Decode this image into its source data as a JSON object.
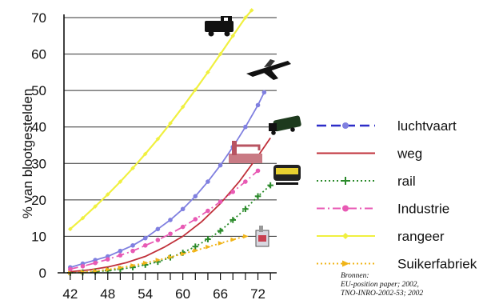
{
  "chart_data": {
    "type": "line",
    "ylabel": "% van blootgestelden",
    "x_ticks": [
      42,
      48,
      54,
      60,
      66,
      72
    ],
    "y_ticks": [
      0,
      10,
      20,
      30,
      40,
      50,
      60,
      70
    ],
    "xlim": [
      41,
      75
    ],
    "ylim": [
      0,
      70
    ],
    "grid": "horizontal",
    "legend_placement": "right",
    "series": [
      {
        "name": "luchtvaart",
        "color": "#8080e0",
        "line_color": "#2d2dc8",
        "style": "dashed",
        "marker": "circle",
        "icon": "airplane-icon",
        "x": [
          42,
          44,
          46,
          48,
          50,
          52,
          54,
          56,
          58,
          60,
          62,
          64,
          66,
          68,
          70,
          72,
          73
        ],
        "y": [
          1.5,
          2.5,
          3.5,
          4.5,
          6,
          7.5,
          9.5,
          12,
          14.5,
          17.5,
          21,
          25,
          29.5,
          34.5,
          40,
          46,
          49.5
        ]
      },
      {
        "name": "weg",
        "color": "#c0303a",
        "style": "solid",
        "marker": "none",
        "icon": "truck-icon",
        "x": [
          42,
          45,
          48,
          51,
          54,
          57,
          60,
          63,
          66,
          69,
          72,
          74
        ],
        "y": [
          0.3,
          0.8,
          1.6,
          2.8,
          4.5,
          7,
          10,
          14,
          19,
          25,
          32,
          37
        ]
      },
      {
        "name": "rail",
        "color": "#2a8a2a",
        "style": "dotted",
        "marker": "plus",
        "icon": "train-icon",
        "x": [
          42,
          44,
          46,
          48,
          50,
          52,
          54,
          56,
          58,
          60,
          62,
          64,
          66,
          68,
          70,
          72,
          74
        ],
        "y": [
          0,
          0.1,
          0.3,
          0.6,
          1,
          1.5,
          2.2,
          3,
          4.2,
          5.5,
          7.2,
          9.2,
          11.5,
          14.5,
          17.5,
          21,
          24
        ]
      },
      {
        "name": "Industrie",
        "color": "#e85ab4",
        "style": "dashdot",
        "marker": "circle",
        "icon": "factory-icon",
        "x": [
          42,
          44,
          46,
          48,
          50,
          52,
          54,
          56,
          58,
          60,
          62,
          64,
          66,
          68,
          70,
          72
        ],
        "y": [
          1,
          1.8,
          2.7,
          3.7,
          4.8,
          6,
          7.5,
          9,
          10.7,
          12.6,
          14.7,
          17,
          19.5,
          22.2,
          25,
          28
        ]
      },
      {
        "name": "rangeer",
        "color": "#f0f040",
        "style": "solid",
        "marker": "diamond",
        "icon": "locomotive-icon",
        "x": [
          42,
          44,
          46,
          48,
          50,
          52,
          54,
          56,
          58,
          60,
          62,
          64,
          66,
          68,
          70,
          71
        ],
        "y": [
          12,
          15,
          18.2,
          21.5,
          25,
          28.7,
          32.6,
          36.7,
          41,
          45.5,
          50.2,
          55,
          60,
          65,
          70,
          72
        ]
      },
      {
        "name": "Suikerfabriek",
        "color": "#f0b418",
        "style": "dotted",
        "marker": "triangle",
        "icon": "sugar-factory-icon",
        "x": [
          42,
          44,
          46,
          48,
          50,
          52,
          54,
          56,
          58,
          60,
          62,
          64,
          66,
          68,
          70
        ],
        "y": [
          0,
          0.2,
          0.5,
          0.9,
          1.4,
          2,
          2.7,
          3.5,
          4.3,
          5.2,
          6.1,
          7.1,
          8.1,
          9.1,
          10
        ]
      }
    ]
  },
  "source": {
    "line1": "Bronnen:",
    "line2": "EU-position paper; 2002,",
    "line3": "TNO-INRO-2002-53; 2002"
  }
}
